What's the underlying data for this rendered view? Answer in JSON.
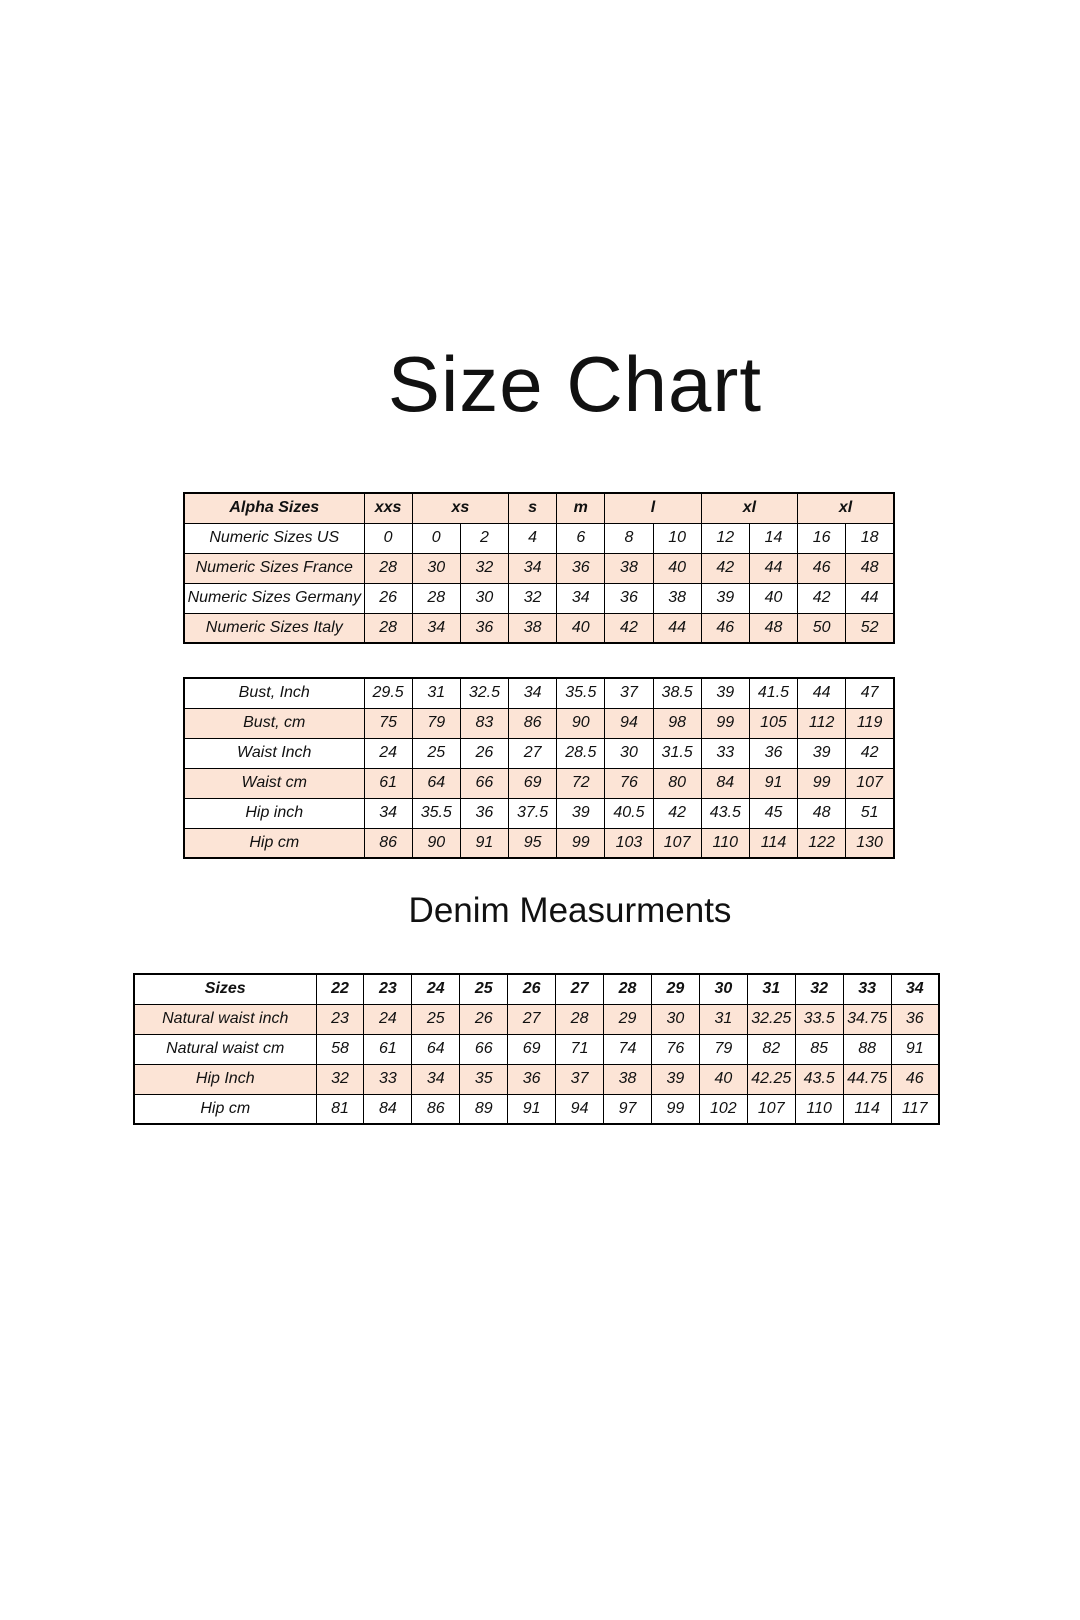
{
  "page": {
    "title": "Size Chart",
    "denim_heading": "Denim Measurments"
  },
  "colors": {
    "row_shade": "#fce4d6",
    "border": "#000000",
    "background": "#ffffff",
    "text": "#111111"
  },
  "alpha_table": {
    "header": {
      "label": "Alpha Sizes",
      "groups": [
        {
          "label": "xxs",
          "span": 1
        },
        {
          "label": "xs",
          "span": 2
        },
        {
          "label": "s",
          "span": 1
        },
        {
          "label": "m",
          "span": 1
        },
        {
          "label": "l",
          "span": 2
        },
        {
          "label": "xl",
          "span": 2
        },
        {
          "label": "xl",
          "span": 2
        }
      ]
    },
    "rows": [
      {
        "label": "Numeric Sizes US",
        "values": [
          "0",
          "0",
          "2",
          "4",
          "6",
          "8",
          "10",
          "12",
          "14",
          "16",
          "18"
        ]
      },
      {
        "label": "Numeric Sizes France",
        "values": [
          "28",
          "30",
          "32",
          "34",
          "36",
          "38",
          "40",
          "42",
          "44",
          "46",
          "48"
        ]
      },
      {
        "label": "Numeric Sizes Germany",
        "values": [
          "26",
          "28",
          "30",
          "32",
          "34",
          "36",
          "38",
          "39",
          "40",
          "42",
          "44"
        ]
      },
      {
        "label": "Numeric Sizes Italy",
        "values": [
          "28",
          "34",
          "36",
          "38",
          "40",
          "42",
          "44",
          "46",
          "48",
          "50",
          "52"
        ]
      }
    ]
  },
  "body_table": {
    "rows": [
      {
        "label": "Bust, Inch",
        "values": [
          "29.5",
          "31",
          "32.5",
          "34",
          "35.5",
          "37",
          "38.5",
          "39",
          "41.5",
          "44",
          "47"
        ]
      },
      {
        "label": "Bust, cm",
        "values": [
          "75",
          "79",
          "83",
          "86",
          "90",
          "94",
          "98",
          "99",
          "105",
          "112",
          "119"
        ]
      },
      {
        "label": "Waist Inch",
        "values": [
          "24",
          "25",
          "26",
          "27",
          "28.5",
          "30",
          "31.5",
          "33",
          "36",
          "39",
          "42"
        ]
      },
      {
        "label": "Waist cm",
        "values": [
          "61",
          "64",
          "66",
          "69",
          "72",
          "76",
          "80",
          "84",
          "91",
          "99",
          "107"
        ]
      },
      {
        "label": "Hip inch",
        "values": [
          "34",
          "35.5",
          "36",
          "37.5",
          "39",
          "40.5",
          "42",
          "43.5",
          "45",
          "48",
          "51"
        ]
      },
      {
        "label": "Hip cm",
        "values": [
          "86",
          "90",
          "91",
          "95",
          "99",
          "103",
          "107",
          "110",
          "114",
          "122",
          "130"
        ]
      }
    ]
  },
  "denim_table": {
    "header": {
      "label": "Sizes",
      "values": [
        "22",
        "23",
        "24",
        "25",
        "26",
        "27",
        "28",
        "29",
        "30",
        "31",
        "32",
        "33",
        "34"
      ]
    },
    "rows": [
      {
        "label": "Natural waist inch",
        "values": [
          "23",
          "24",
          "25",
          "26",
          "27",
          "28",
          "29",
          "30",
          "31",
          "32.25",
          "33.5",
          "34.75",
          "36"
        ]
      },
      {
        "label": "Natural waist cm",
        "values": [
          "58",
          "61",
          "64",
          "66",
          "69",
          "71",
          "74",
          "76",
          "79",
          "82",
          "85",
          "88",
          "91"
        ]
      },
      {
        "label": "Hip Inch",
        "values": [
          "32",
          "33",
          "34",
          "35",
          "36",
          "37",
          "38",
          "39",
          "40",
          "42.25",
          "43.5",
          "44.75",
          "46"
        ]
      },
      {
        "label": "Hip cm",
        "values": [
          "81",
          "84",
          "86",
          "89",
          "91",
          "94",
          "97",
          "99",
          "102",
          "107",
          "110",
          "114",
          "117"
        ]
      }
    ]
  }
}
